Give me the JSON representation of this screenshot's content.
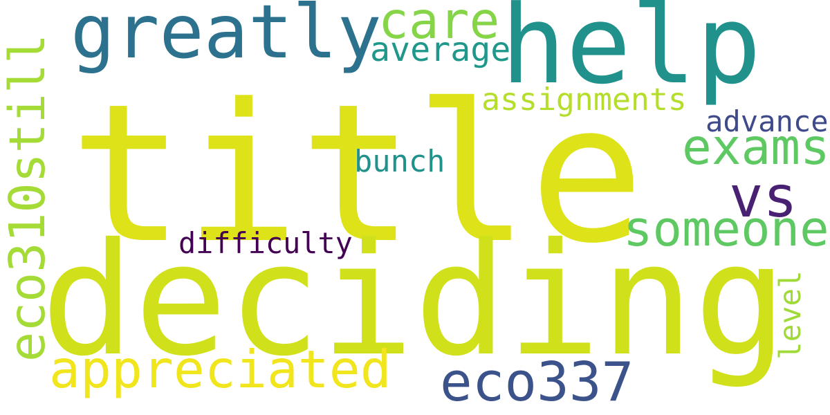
{
  "words": [
    {
      "key": "title",
      "text": "title",
      "color": "#dde318"
    },
    {
      "key": "deciding",
      "text": "deciding",
      "color": "#d0e11c"
    },
    {
      "key": "help",
      "text": "help",
      "color": "#21918c"
    },
    {
      "key": "greatly",
      "text": "greatly",
      "color": "#2c728e"
    },
    {
      "key": "eco310still",
      "text": "eco310still",
      "color": "#a5db36"
    },
    {
      "key": "appreciated",
      "text": "appreciated",
      "color": "#f1e51d"
    },
    {
      "key": "eco337",
      "text": "eco337",
      "color": "#3b528b"
    },
    {
      "key": "someone",
      "text": "someone",
      "color": "#5ec962"
    },
    {
      "key": "exams",
      "text": "exams",
      "color": "#5ec962"
    },
    {
      "key": "care",
      "text": "care",
      "color": "#86d549"
    },
    {
      "key": "vs",
      "text": "vs",
      "color": "#482173"
    },
    {
      "key": "assignments",
      "text": "assignments",
      "color": "#b5de2b"
    },
    {
      "key": "average",
      "text": "average",
      "color": "#1f988b"
    },
    {
      "key": "bunch",
      "text": "bunch",
      "color": "#21918c"
    },
    {
      "key": "advance",
      "text": "advance",
      "color": "#3e4a89"
    },
    {
      "key": "difficulty",
      "text": "difficulty",
      "color": "#440154"
    },
    {
      "key": "level",
      "text": "level",
      "color": "#a0da39"
    }
  ]
}
